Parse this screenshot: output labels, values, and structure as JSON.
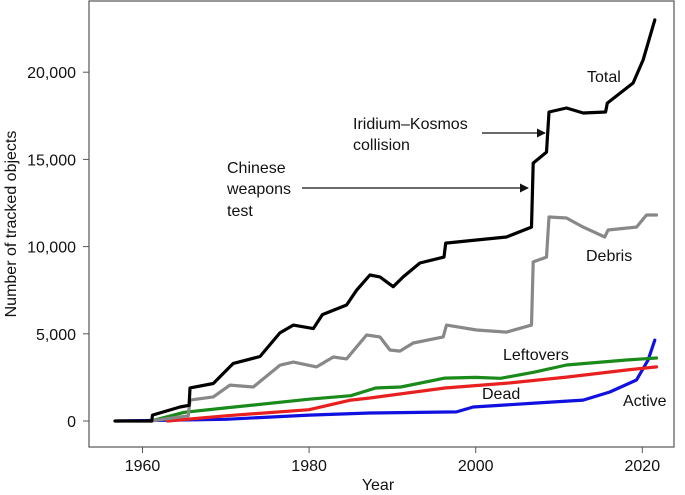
{
  "chart_data": {
    "type": "line",
    "title": "",
    "xlabel": "Year",
    "ylabel": "Number of tracked objects",
    "xlim": [
      1955,
      2024
    ],
    "ylim": [
      -1500,
      24000
    ],
    "xticks": [
      1960,
      1980,
      2000,
      2020
    ],
    "xtick_labels": [
      "1960",
      "1980",
      "2000",
      "2020"
    ],
    "yticks": [
      0,
      5000,
      10000,
      15000,
      20000
    ],
    "ytick_labels": [
      "0",
      "5,000",
      "10,000",
      "15,000",
      "20,000"
    ],
    "grid": false,
    "legend": "none (series labelled inline)",
    "series": [
      {
        "name": "Total",
        "color": "#000000",
        "points": [
          [
            1956.7,
            0
          ],
          [
            1961.1,
            0
          ],
          [
            1961.2,
            340
          ],
          [
            1964.5,
            800
          ],
          [
            1965.6,
            900
          ],
          [
            1965.7,
            1900
          ],
          [
            1968.5,
            2150
          ],
          [
            1970.9,
            3300
          ],
          [
            1974.1,
            3700
          ],
          [
            1976.5,
            5050
          ],
          [
            1978.1,
            5500
          ],
          [
            1980.5,
            5300
          ],
          [
            1981.6,
            6100
          ],
          [
            1984.5,
            6650
          ],
          [
            1985.7,
            7500
          ],
          [
            1987.3,
            8370
          ],
          [
            1988.5,
            8260
          ],
          [
            1990.1,
            7700
          ],
          [
            1991.3,
            8260
          ],
          [
            1993.3,
            9060
          ],
          [
            1996.2,
            9400
          ],
          [
            1996.4,
            10200
          ],
          [
            2000.1,
            10380
          ],
          [
            2003.7,
            10550
          ],
          [
            2006.7,
            11120
          ],
          [
            2006.9,
            14790
          ],
          [
            2008.5,
            15420
          ],
          [
            2008.8,
            17720
          ],
          [
            2010.9,
            17950
          ],
          [
            2012.9,
            17660
          ],
          [
            2015.6,
            17720
          ],
          [
            2015.8,
            18230
          ],
          [
            2018.9,
            19380
          ],
          [
            2020.1,
            20700
          ],
          [
            2021.5,
            23000
          ]
        ]
      },
      {
        "name": "Debris",
        "color": "#888888",
        "points": [
          [
            1961,
            0
          ],
          [
            1965.5,
            300
          ],
          [
            1965.7,
            1200
          ],
          [
            1968.5,
            1380
          ],
          [
            1970.5,
            2060
          ],
          [
            1973.3,
            1950
          ],
          [
            1976.5,
            3200
          ],
          [
            1978.1,
            3380
          ],
          [
            1980.9,
            3100
          ],
          [
            1982.9,
            3670
          ],
          [
            1984.5,
            3560
          ],
          [
            1986.9,
            4930
          ],
          [
            1988.5,
            4820
          ],
          [
            1989.7,
            4070
          ],
          [
            1990.9,
            4010
          ],
          [
            1992.5,
            4470
          ],
          [
            1996.1,
            4820
          ],
          [
            1996.5,
            5500
          ],
          [
            2000.1,
            5220
          ],
          [
            2003.7,
            5100
          ],
          [
            2006.7,
            5500
          ],
          [
            2006.9,
            9120
          ],
          [
            2008.5,
            9400
          ],
          [
            2008.8,
            11700
          ],
          [
            2010.9,
            11640
          ],
          [
            2012.9,
            11120
          ],
          [
            2015.5,
            10550
          ],
          [
            2015.9,
            10950
          ],
          [
            2019.3,
            11120
          ],
          [
            2020.5,
            11810
          ],
          [
            2021.7,
            11810
          ]
        ]
      },
      {
        "name": "Leftovers",
        "color": "#1a8a1a",
        "points": [
          [
            1961,
            0
          ],
          [
            1965,
            500
          ],
          [
            1970,
            750
          ],
          [
            1980,
            1250
          ],
          [
            1985,
            1450
          ],
          [
            1988,
            1890
          ],
          [
            1991,
            1950
          ],
          [
            1996.3,
            2460
          ],
          [
            2000,
            2500
          ],
          [
            2003,
            2450
          ],
          [
            2007,
            2800
          ],
          [
            2010.9,
            3210
          ],
          [
            2018.1,
            3500
          ],
          [
            2021.7,
            3610
          ]
        ]
      },
      {
        "name": "Dead",
        "color": "#e82020",
        "points": [
          [
            1963,
            0
          ],
          [
            1970,
            300
          ],
          [
            1980,
            650
          ],
          [
            1985,
            1200
          ],
          [
            1987.3,
            1320
          ],
          [
            1996.3,
            1890
          ],
          [
            2004,
            2180
          ],
          [
            2010.9,
            2520
          ],
          [
            2018,
            2920
          ],
          [
            2021.7,
            3100
          ]
        ]
      },
      {
        "name": "Active",
        "color": "#1010e0",
        "points": [
          [
            1957,
            0
          ],
          [
            1970,
            100
          ],
          [
            1980,
            340
          ],
          [
            1987.3,
            460
          ],
          [
            1997.7,
            520
          ],
          [
            1999.7,
            800
          ],
          [
            2007.3,
            1030
          ],
          [
            2012.9,
            1200
          ],
          [
            2016.1,
            1660
          ],
          [
            2019.3,
            2350
          ],
          [
            2020.7,
            3500
          ],
          [
            2021.5,
            4640
          ]
        ]
      }
    ],
    "annotations": [
      {
        "text_lines": [
          "Chinese",
          "weapons",
          "test"
        ],
        "arrow_to": [
          2007,
          13000
        ]
      },
      {
        "text_lines": [
          "Iridium–Kosmos",
          "collision"
        ],
        "arrow_to": [
          2009,
          16500
        ]
      }
    ]
  }
}
